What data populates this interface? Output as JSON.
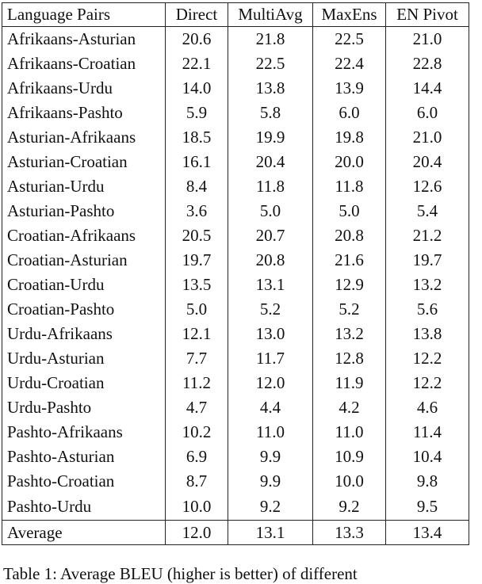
{
  "table": {
    "headers": [
      "Language Pairs",
      "Direct",
      "MultiAvg",
      "MaxEns",
      "EN Pivot"
    ],
    "rows": [
      {
        "pair": "Afrikaans-Asturian",
        "direct": "20.6",
        "multiavg": "21.8",
        "maxens": "22.5",
        "pivot": "21.0",
        "bold": [
          "maxens"
        ]
      },
      {
        "pair": "Afrikaans-Croatian",
        "direct": "22.1",
        "multiavg": "22.5",
        "maxens": "22.4",
        "pivot": "22.8",
        "bold": [
          "pivot"
        ]
      },
      {
        "pair": "Afrikaans-Urdu",
        "direct": "14.0",
        "multiavg": "13.8",
        "maxens": "13.9",
        "pivot": "14.4",
        "bold": [
          "pivot"
        ]
      },
      {
        "pair": "Afrikaans-Pashto",
        "direct": "5.9",
        "multiavg": "5.8",
        "maxens": "6.0",
        "pivot": "6.0",
        "bold": [
          "direct",
          "multiavg",
          "maxens",
          "pivot"
        ]
      },
      {
        "pair": "Asturian-Afrikaans",
        "direct": "18.5",
        "multiavg": "19.9",
        "maxens": "19.8",
        "pivot": "21.0",
        "bold": [
          "pivot"
        ]
      },
      {
        "pair": "Asturian-Croatian",
        "direct": "16.1",
        "multiavg": "20.4",
        "maxens": "20.0",
        "pivot": "20.4",
        "bold": [
          "multiavg",
          "pivot"
        ]
      },
      {
        "pair": "Asturian-Urdu",
        "direct": "8.4",
        "multiavg": "11.8",
        "maxens": "11.8",
        "pivot": "12.6",
        "bold": [
          "pivot"
        ]
      },
      {
        "pair": "Asturian-Pashto",
        "direct": "3.6",
        "multiavg": "5.0",
        "maxens": "5.0",
        "pivot": "5.4",
        "bold": [
          "pivot"
        ]
      },
      {
        "pair": "Croatian-Afrikaans",
        "direct": "20.5",
        "multiavg": "20.7",
        "maxens": "20.8",
        "pivot": "21.2",
        "bold": [
          "pivot"
        ]
      },
      {
        "pair": "Croatian-Asturian",
        "direct": "19.7",
        "multiavg": "20.8",
        "maxens": "21.6",
        "pivot": "19.7",
        "bold": [
          "maxens"
        ]
      },
      {
        "pair": "Croatian-Urdu",
        "direct": "13.5",
        "multiavg": "13.1",
        "maxens": "12.9",
        "pivot": "13.2",
        "bold": [
          "direct"
        ]
      },
      {
        "pair": "Croatian-Pashto",
        "direct": "5.0",
        "multiavg": "5.2",
        "maxens": "5.2",
        "pivot": "5.6",
        "bold": [
          "pivot"
        ]
      },
      {
        "pair": "Urdu-Afrikaans",
        "direct": "12.1",
        "multiavg": "13.0",
        "maxens": "13.2",
        "pivot": "13.8",
        "bold": [
          "pivot"
        ]
      },
      {
        "pair": "Urdu-Asturian",
        "direct": "7.7",
        "multiavg": "11.7",
        "maxens": "12.8",
        "pivot": "12.2",
        "bold": [
          "maxens"
        ]
      },
      {
        "pair": "Urdu-Croatian",
        "direct": "11.2",
        "multiavg": "12.0",
        "maxens": "11.9",
        "pivot": "12.2",
        "bold": [
          "multiavg",
          "maxens",
          "pivot"
        ]
      },
      {
        "pair": "Urdu-Pashto",
        "direct": "4.7",
        "multiavg": "4.4",
        "maxens": "4.2",
        "pivot": "4.6",
        "bold": [
          "direct",
          "multiavg",
          "pivot"
        ]
      },
      {
        "pair": "Pashto-Afrikaans",
        "direct": "10.2",
        "multiavg": "11.0",
        "maxens": "11.0",
        "pivot": "11.4",
        "bold": [
          "pivot"
        ]
      },
      {
        "pair": "Pashto-Asturian",
        "direct": "6.9",
        "multiavg": "9.9",
        "maxens": "10.9",
        "pivot": "10.4",
        "bold": [
          "maxens"
        ]
      },
      {
        "pair": "Pashto-Croatian",
        "direct": "8.7",
        "multiavg": "9.9",
        "maxens": "10.0",
        "pivot": "9.8",
        "bold": [
          "multiavg",
          "maxens",
          "pivot"
        ]
      },
      {
        "pair": "Pashto-Urdu",
        "direct": "10.0",
        "multiavg": "9.2",
        "maxens": "9.2",
        "pivot": "9.5",
        "bold": [
          "direct"
        ]
      }
    ],
    "average": {
      "pair": "Average",
      "direct": "12.0",
      "multiavg": "13.1",
      "maxens": "13.3",
      "pivot": "13.4",
      "bold": [
        "maxens",
        "pivot"
      ]
    }
  },
  "caption": "Table 1: Average BLEU (higher is better) of different"
}
